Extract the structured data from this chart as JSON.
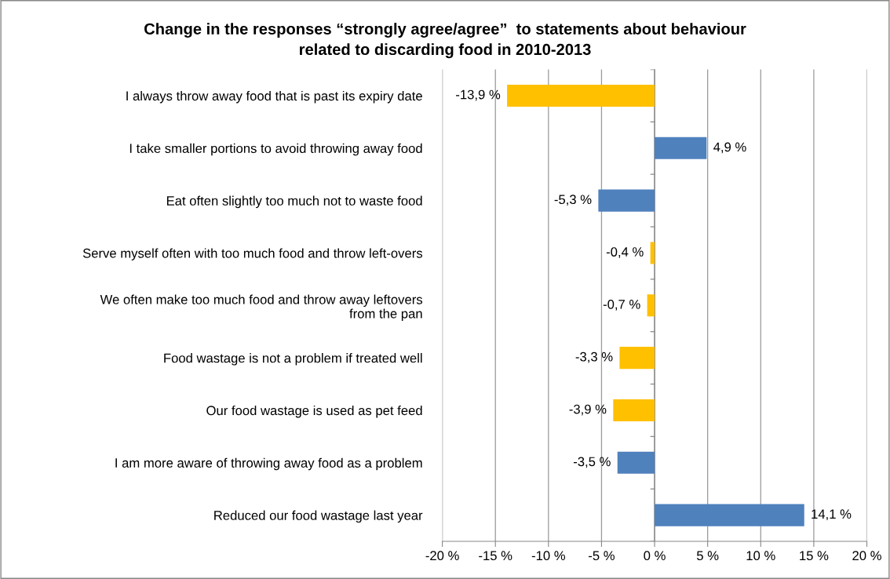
{
  "chart_data": {
    "type": "bar",
    "orientation": "horizontal",
    "title": "Change in the responses “strongly agree/agree”  to statements about behaviour\nrelated to discarding food in 2010-2013",
    "categories": [
      "I always throw away food that is past its expiry date",
      "I take smaller portions to avoid throwing away food",
      "Eat often slightly too much not to waste food",
      "Serve myself often with too much food and throw left-overs",
      "We often make too much food and throw away leftovers\nfrom the pan",
      "Food wastage is not a problem if treated well",
      "Our food wastage is used as pet feed",
      "I am more aware of throwing away food as a problem",
      "Reduced our food wastage last year"
    ],
    "values": [
      -13.9,
      4.9,
      -5.3,
      -0.4,
      -0.7,
      -3.3,
      -3.9,
      -3.5,
      14.1
    ],
    "value_labels": [
      "-13,9 %",
      "4,9 %",
      "-5,3 %",
      "-0,4 %",
      "-0,7 %",
      "-3,3 %",
      "-3,9 %",
      "-3,5 %",
      "14,1 %"
    ],
    "colors": [
      "#ffc000",
      "#4f81bd",
      "#4f81bd",
      "#ffc000",
      "#ffc000",
      "#ffc000",
      "#ffc000",
      "#4f81bd",
      "#4f81bd"
    ],
    "xlim": [
      -20,
      20
    ],
    "xticks": [
      {
        "value": -20,
        "label": "-20 %"
      },
      {
        "value": -15,
        "label": "-15 %"
      },
      {
        "value": -10,
        "label": "-10 %"
      },
      {
        "value": -5,
        "label": "-5 %"
      },
      {
        "value": 0,
        "label": "0 %"
      },
      {
        "value": 5,
        "label": "5 %"
      },
      {
        "value": 10,
        "label": "10 %"
      },
      {
        "value": 15,
        "label": "15 %"
      },
      {
        "value": 20,
        "label": "20 %"
      }
    ],
    "grid": "x",
    "legend": false
  }
}
